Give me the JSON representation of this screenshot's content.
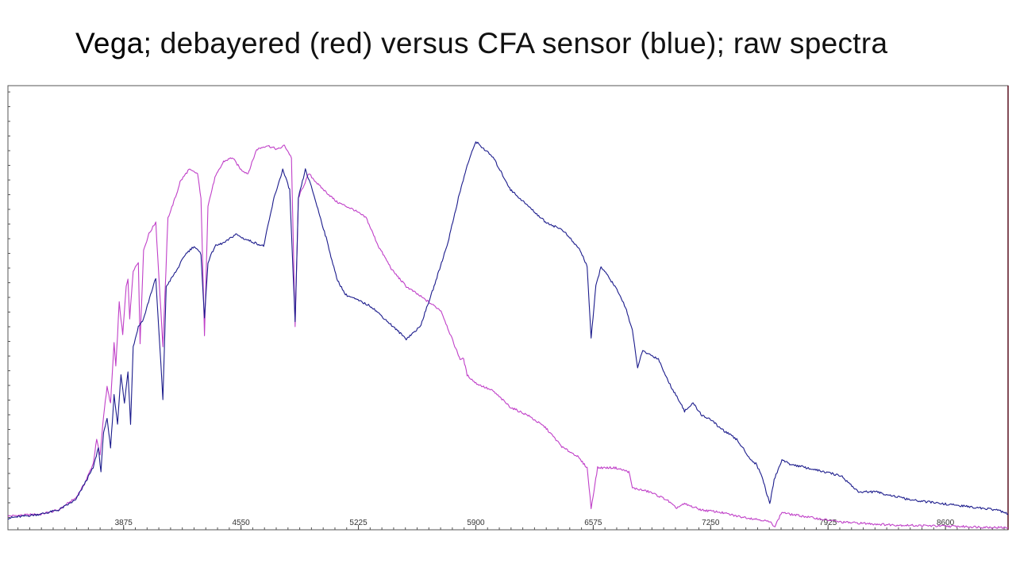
{
  "slide": {
    "title_bold": "Vega;",
    "title_rest": " debayered (red) versus CFA sensor (blue); raw spectra"
  },
  "chart_data": {
    "type": "line",
    "title": "Vega; debayered (red) versus CFA sensor (blue); raw spectra",
    "xlabel": "",
    "ylabel": "",
    "xlim": [
      3210,
      8960
    ],
    "ylim": [
      0,
      100
    ],
    "x_ticks": [
      3875,
      4550,
      5225,
      5900,
      6575,
      7250,
      7925,
      8600
    ],
    "grid": false,
    "colors": {
      "debayered": "#c040c8",
      "cfa": "#1c1c8c",
      "frame": "#5a1020"
    },
    "series": [
      {
        "key": "debayered",
        "values": [
          [
            3210,
            3.0
          ],
          [
            3400,
            3.5
          ],
          [
            3500,
            4.5
          ],
          [
            3600,
            7.5
          ],
          [
            3650,
            11
          ],
          [
            3700,
            16
          ],
          [
            3720,
            22
          ],
          [
            3740,
            18
          ],
          [
            3760,
            28
          ],
          [
            3780,
            35
          ],
          [
            3800,
            31
          ],
          [
            3820,
            46
          ],
          [
            3830,
            40
          ],
          [
            3850,
            56
          ],
          [
            3870,
            48
          ],
          [
            3890,
            60
          ],
          [
            3900,
            62
          ],
          [
            3910,
            52
          ],
          [
            3930,
            64
          ],
          [
            3960,
            66
          ],
          [
            3970,
            46
          ],
          [
            3990,
            69
          ],
          [
            4020,
            73
          ],
          [
            4060,
            76
          ],
          [
            4101,
            45
          ],
          [
            4130,
            77
          ],
          [
            4180,
            83
          ],
          [
            4200,
            86
          ],
          [
            4250,
            89
          ],
          [
            4300,
            88
          ],
          [
            4320,
            82
          ],
          [
            4340,
            48
          ],
          [
            4360,
            80
          ],
          [
            4400,
            87
          ],
          [
            4450,
            91
          ],
          [
            4500,
            92
          ],
          [
            4550,
            89
          ],
          [
            4590,
            88
          ],
          [
            4640,
            94
          ],
          [
            4700,
            95
          ],
          [
            4760,
            94
          ],
          [
            4800,
            95
          ],
          [
            4840,
            92
          ],
          [
            4861,
            50
          ],
          [
            4880,
            82
          ],
          [
            4940,
            88
          ],
          [
            5000,
            85
          ],
          [
            5100,
            81
          ],
          [
            5200,
            79
          ],
          [
            5270,
            77
          ],
          [
            5340,
            70
          ],
          [
            5420,
            64
          ],
          [
            5500,
            60
          ],
          [
            5600,
            57
          ],
          [
            5700,
            54
          ],
          [
            5790,
            44
          ],
          [
            5810,
            42
          ],
          [
            5830,
            42
          ],
          [
            5850,
            38
          ],
          [
            5900,
            36
          ],
          [
            6000,
            34
          ],
          [
            6100,
            30
          ],
          [
            6200,
            28
          ],
          [
            6300,
            25
          ],
          [
            6400,
            20
          ],
          [
            6480,
            18
          ],
          [
            6540,
            15
          ],
          [
            6563,
            5
          ],
          [
            6600,
            15
          ],
          [
            6700,
            15
          ],
          [
            6780,
            14
          ],
          [
            6800,
            10
          ],
          [
            6900,
            9
          ],
          [
            7000,
            7
          ],
          [
            7050,
            5
          ],
          [
            7100,
            6
          ],
          [
            7200,
            4.5
          ],
          [
            7300,
            4
          ],
          [
            7400,
            3
          ],
          [
            7550,
            2
          ],
          [
            7590,
            1.5
          ],
          [
            7620,
            0.5
          ],
          [
            7660,
            4
          ],
          [
            7700,
            3.5
          ],
          [
            7850,
            2.5
          ],
          [
            8000,
            1.5
          ],
          [
            8300,
            0.8
          ],
          [
            8600,
            0.5
          ],
          [
            8800,
            0.3
          ],
          [
            8960,
            0.1
          ]
        ]
      },
      {
        "key": "cfa",
        "values": [
          [
            3210,
            2.5
          ],
          [
            3400,
            3.5
          ],
          [
            3500,
            4.5
          ],
          [
            3600,
            7
          ],
          [
            3650,
            11
          ],
          [
            3700,
            15
          ],
          [
            3730,
            20
          ],
          [
            3745,
            14
          ],
          [
            3760,
            24
          ],
          [
            3780,
            27
          ],
          [
            3800,
            20
          ],
          [
            3820,
            33
          ],
          [
            3840,
            26
          ],
          [
            3860,
            38
          ],
          [
            3880,
            31
          ],
          [
            3900,
            39
          ],
          [
            3915,
            26
          ],
          [
            3930,
            45
          ],
          [
            3960,
            50
          ],
          [
            3990,
            52
          ],
          [
            4030,
            58
          ],
          [
            4060,
            62
          ],
          [
            4101,
            32
          ],
          [
            4120,
            60
          ],
          [
            4180,
            64
          ],
          [
            4230,
            68
          ],
          [
            4280,
            70
          ],
          [
            4320,
            68
          ],
          [
            4340,
            52
          ],
          [
            4360,
            66
          ],
          [
            4400,
            70
          ],
          [
            4460,
            71
          ],
          [
            4520,
            73
          ],
          [
            4560,
            72
          ],
          [
            4620,
            71
          ],
          [
            4680,
            70
          ],
          [
            4740,
            82
          ],
          [
            4790,
            89
          ],
          [
            4830,
            84
          ],
          [
            4861,
            51
          ],
          [
            4880,
            82
          ],
          [
            4920,
            89
          ],
          [
            4960,
            84
          ],
          [
            5040,
            72
          ],
          [
            5100,
            62
          ],
          [
            5150,
            58
          ],
          [
            5200,
            57
          ],
          [
            5300,
            55
          ],
          [
            5400,
            51
          ],
          [
            5500,
            47
          ],
          [
            5580,
            50
          ],
          [
            5660,
            60
          ],
          [
            5740,
            71
          ],
          [
            5800,
            82
          ],
          [
            5850,
            90
          ],
          [
            5900,
            96
          ],
          [
            6000,
            92
          ],
          [
            6100,
            84
          ],
          [
            6200,
            80
          ],
          [
            6300,
            76
          ],
          [
            6400,
            74
          ],
          [
            6500,
            69
          ],
          [
            6540,
            65
          ],
          [
            6563,
            47
          ],
          [
            6590,
            60
          ],
          [
            6620,
            65
          ],
          [
            6700,
            60
          ],
          [
            6760,
            55
          ],
          [
            6800,
            49
          ],
          [
            6830,
            40
          ],
          [
            6860,
            44
          ],
          [
            6950,
            42
          ],
          [
            7000,
            37
          ],
          [
            7050,
            33
          ],
          [
            7080,
            31
          ],
          [
            7100,
            29
          ],
          [
            7150,
            31
          ],
          [
            7200,
            28
          ],
          [
            7250,
            27
          ],
          [
            7300,
            25
          ],
          [
            7400,
            22
          ],
          [
            7450,
            19
          ],
          [
            7480,
            17
          ],
          [
            7510,
            16
          ],
          [
            7545,
            13
          ],
          [
            7570,
            9
          ],
          [
            7590,
            6
          ],
          [
            7615,
            12
          ],
          [
            7660,
            17
          ],
          [
            7700,
            16
          ],
          [
            7800,
            15
          ],
          [
            7900,
            14
          ],
          [
            8000,
            13
          ],
          [
            8100,
            9
          ],
          [
            8200,
            9
          ],
          [
            8300,
            8
          ],
          [
            8400,
            7
          ],
          [
            8500,
            6.5
          ],
          [
            8600,
            6
          ],
          [
            8700,
            5.5
          ],
          [
            8800,
            5
          ],
          [
            8900,
            4.5
          ],
          [
            8960,
            3.5
          ]
        ]
      }
    ]
  }
}
